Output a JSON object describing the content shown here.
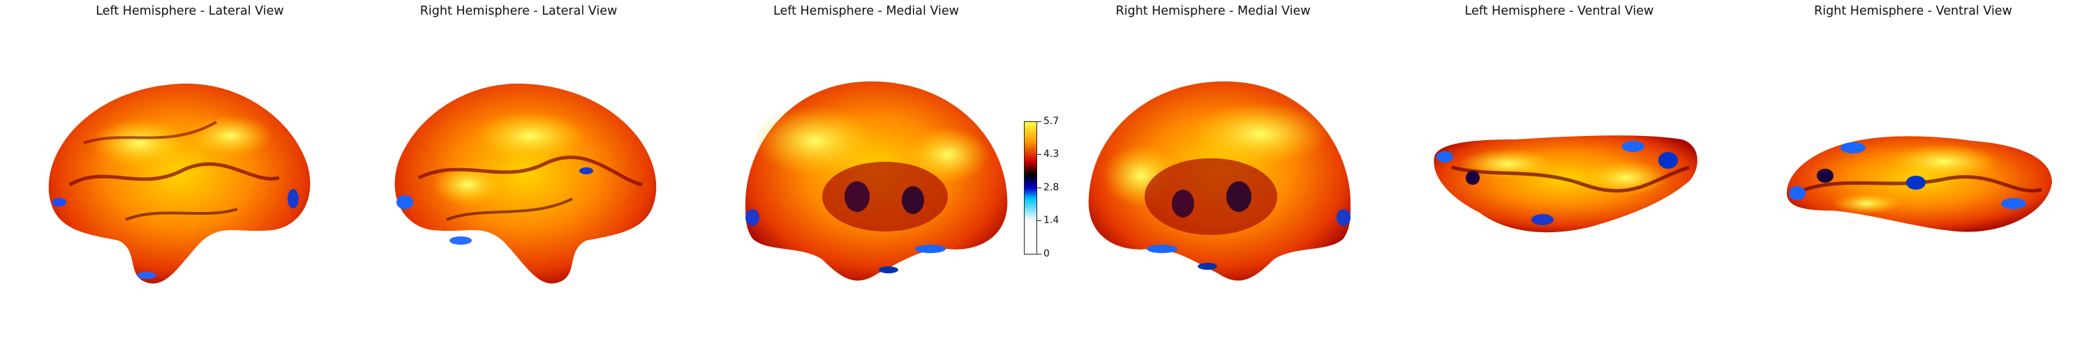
{
  "panels": [
    {
      "title": "Left Hemisphere - Lateral View"
    },
    {
      "title": "Right Hemisphere - Lateral View"
    },
    {
      "title": "Left Hemisphere - Medial View"
    },
    {
      "title": "Right Hemisphere - Medial View"
    },
    {
      "title": "Left Hemisphere - Ventral View"
    },
    {
      "title": "Right Hemisphere - Ventral View"
    }
  ],
  "colorbar": {
    "ticks": [
      "5.7",
      "4.3",
      "2.8",
      "1.4",
      "0"
    ],
    "colormap_colors": [
      "#ffffff",
      "#00bfff",
      "#0000cc",
      "#000000",
      "#b30000",
      "#ff8000",
      "#ffff40"
    ]
  }
}
